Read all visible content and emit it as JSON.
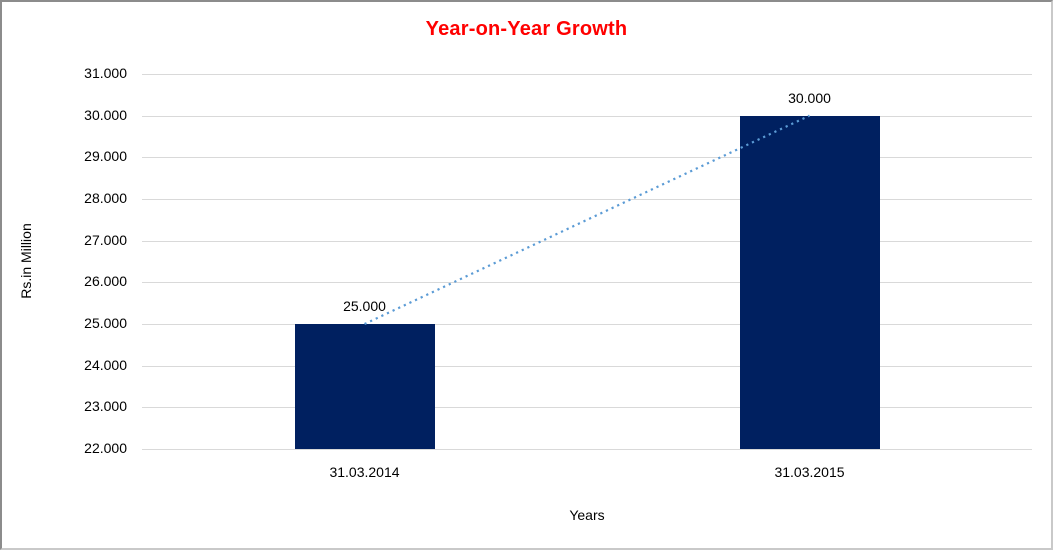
{
  "chart_data": {
    "type": "bar",
    "title": "Year-on-Year Growth",
    "title_color": "#ff0000",
    "categories": [
      "31.03.2014",
      "31.03.2015"
    ],
    "values": [
      25000,
      30000
    ],
    "value_labels": [
      "25.000",
      "30.000"
    ],
    "series": [
      {
        "name": "Rs.in Million",
        "values": [
          25000,
          30000
        ]
      }
    ],
    "xlabel": "Years",
    "ylabel": "Rs.in Million",
    "ylim": [
      22000,
      31000
    ],
    "ytick_step": 1000,
    "ytick_labels": [
      "22.000",
      "23.000",
      "24.000",
      "25.000",
      "26.000",
      "27.000",
      "28.000",
      "29.000",
      "30.000",
      "31.000"
    ],
    "grid": true,
    "legend": "none",
    "bar_color": "#002060",
    "gridline_color": "#d9d9d9",
    "trendline": {
      "style": "dotted",
      "color": "#5b9bd5",
      "from_value": 25000,
      "to_value": 30000
    }
  }
}
